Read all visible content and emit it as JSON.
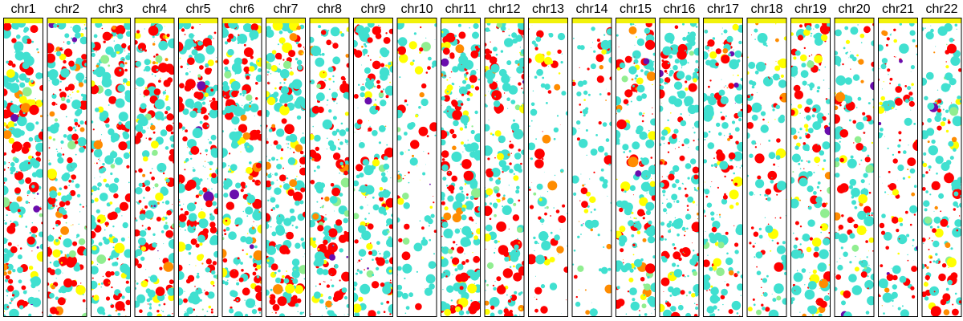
{
  "chart_data": {
    "type": "scatter",
    "title": "",
    "xlabel": "",
    "ylabel": "",
    "grid": false,
    "legend": "none",
    "panels": [
      "chr1",
      "chr2",
      "chr3",
      "chr4",
      "chr5",
      "chr6",
      "chr7",
      "chr8",
      "chr9",
      "chr10",
      "chr11",
      "chr12",
      "chr13",
      "chr14",
      "chr15",
      "chr16",
      "chr17",
      "chr18",
      "chr19",
      "chr20",
      "chr21",
      "chr22"
    ],
    "panel_density": [
      0.95,
      0.9,
      0.9,
      0.9,
      0.9,
      0.9,
      0.9,
      0.7,
      0.75,
      0.3,
      0.9,
      0.8,
      0.3,
      0.3,
      0.7,
      0.75,
      0.7,
      0.4,
      0.7,
      0.55,
      0.45,
      0.6
    ],
    "panel_header_color": "#f2f20a",
    "colors": {
      "turquoise": "#40e0d0",
      "red": "#ff0000",
      "yellow": "#ffff00",
      "orange": "#ff8c00",
      "lightgreen": "#90ee90",
      "purple": "#6a0dad"
    },
    "color_weights": {
      "turquoise": 0.55,
      "red": 0.27,
      "yellow": 0.09,
      "orange": 0.05,
      "lightgreen": 0.03,
      "purple": 0.01
    },
    "point_size_range": [
      0.5,
      6.5
    ]
  }
}
